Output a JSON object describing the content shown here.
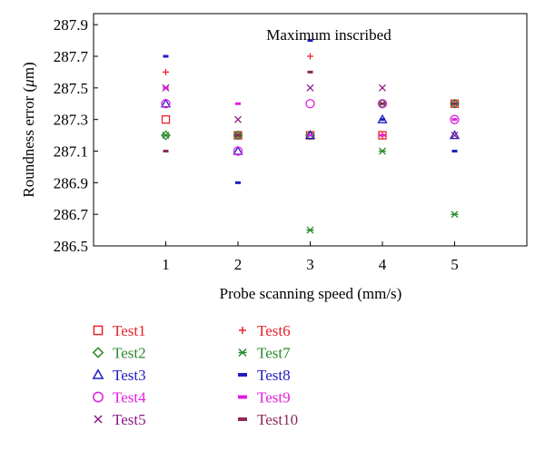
{
  "chart_data": {
    "type": "scatter",
    "title": "Maximum inscribed",
    "xlabel": "Probe scanning speed (mm/s)",
    "ylabel_prefix": "Roundness error (",
    "ylabel_mu": "μ",
    "ylabel_suffix": "m)",
    "x_ticks": [
      "1",
      "2",
      "3",
      "4",
      "5"
    ],
    "y_ticks": [
      "286.5",
      "286.7",
      "286.9",
      "287.1",
      "287.3",
      "287.5",
      "287.7",
      "287.9"
    ],
    "xlim": [
      0,
      6
    ],
    "ylim": [
      286.5,
      287.97
    ],
    "grid": false,
    "legend_position": "below",
    "series": [
      {
        "name": "Test1",
        "color": "#e8232a",
        "marker": "square",
        "x": [
          1,
          2,
          3,
          4,
          5
        ],
        "y": [
          287.3,
          287.2,
          287.2,
          287.2,
          287.4
        ]
      },
      {
        "name": "Test2",
        "color": "#2a8a2a",
        "marker": "diamond",
        "x": [
          1,
          2,
          3,
          4,
          5
        ],
        "y": [
          287.2,
          287.2,
          287.2,
          287.4,
          287.4
        ]
      },
      {
        "name": "Test3",
        "color": "#1f1fc0",
        "marker": "triangle",
        "x": [
          1,
          2,
          3,
          4,
          5
        ],
        "y": [
          287.4,
          287.1,
          287.2,
          287.3,
          287.2
        ]
      },
      {
        "name": "Test4",
        "color": "#e21de2",
        "marker": "circle",
        "x": [
          1,
          2,
          3,
          4,
          5
        ],
        "y": [
          287.4,
          287.1,
          287.4,
          287.4,
          287.3
        ]
      },
      {
        "name": "Test5",
        "color": "#8a1a8a",
        "marker": "x",
        "x": [
          1,
          2,
          3,
          4,
          5
        ],
        "y": [
          287.5,
          287.3,
          287.5,
          287.5,
          287.2
        ]
      },
      {
        "name": "Test6",
        "color": "#e8232a",
        "marker": "plus",
        "x": [
          1,
          2,
          3,
          4,
          5
        ],
        "y": [
          287.6,
          287.2,
          287.7,
          287.2,
          287.4
        ]
      },
      {
        "name": "Test7",
        "color": "#2a8a2a",
        "marker": "star",
        "x": [
          1,
          2,
          3,
          4,
          5
        ],
        "y": [
          287.2,
          287.2,
          286.6,
          287.1,
          286.7
        ]
      },
      {
        "name": "Test8",
        "color": "#1f1fc0",
        "marker": "dash",
        "x": [
          1,
          2,
          3,
          4,
          5
        ],
        "y": [
          287.7,
          286.9,
          287.8,
          287.3,
          287.1
        ]
      },
      {
        "name": "Test9",
        "color": "#e21de2",
        "marker": "dash",
        "x": [
          1,
          2,
          3,
          4,
          5
        ],
        "y": [
          287.5,
          287.4,
          287.2,
          287.2,
          287.3
        ]
      },
      {
        "name": "Test10",
        "color": "#8a2a5a",
        "marker": "dash",
        "x": [
          1,
          2,
          3,
          4,
          5
        ],
        "y": [
          287.1,
          287.2,
          287.6,
          287.4,
          287.4
        ]
      }
    ]
  }
}
